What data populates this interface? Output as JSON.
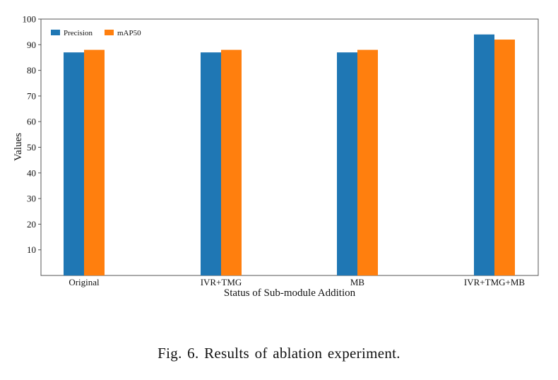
{
  "chart_data": {
    "type": "bar",
    "categories": [
      "Original",
      "IVR+TMG",
      "MB",
      "IVR+TMG+MB"
    ],
    "series": [
      {
        "name": "Precision",
        "values": [
          87,
          87,
          87,
          94
        ],
        "color": "#1f77b4"
      },
      {
        "name": "mAP50",
        "values": [
          88,
          88,
          88,
          92
        ],
        "color": "#ff7f0e"
      }
    ],
    "xlabel": "Status of Sub-module Addition",
    "ylabel": "Values",
    "ylim": [
      0,
      100
    ],
    "yticks": [
      10,
      20,
      30,
      40,
      50,
      60,
      70,
      80,
      90,
      100
    ],
    "grid": false,
    "legend_position": "top-left"
  },
  "caption": "Fig. 6.  Results of ablation experiment."
}
